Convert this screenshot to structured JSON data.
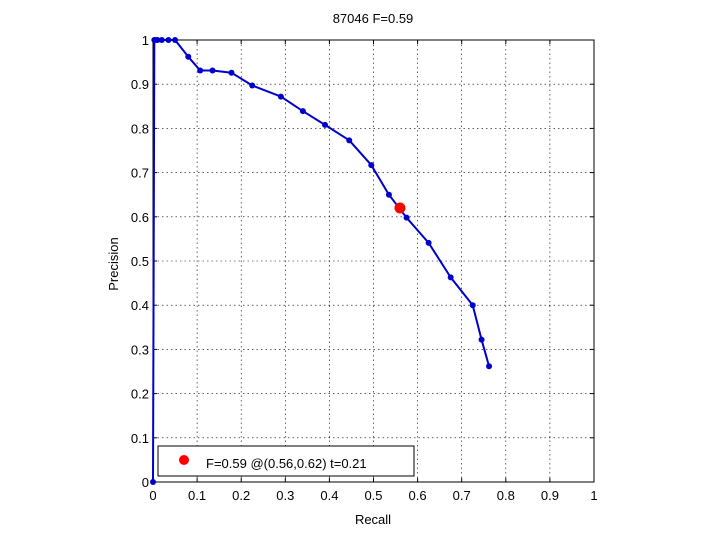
{
  "chart_data": {
    "type": "line",
    "title": "87046 F=0.59",
    "xlabel": "Recall",
    "ylabel": "Precision",
    "xlim": [
      0,
      1
    ],
    "ylim": [
      0,
      1
    ],
    "xticks": [
      "0",
      "0.1",
      "0.2",
      "0.3",
      "0.4",
      "0.5",
      "0.6",
      "0.7",
      "0.8",
      "0.9",
      "1"
    ],
    "yticks": [
      "0",
      "0.1",
      "0.2",
      "0.3",
      "0.4",
      "0.5",
      "0.6",
      "0.7",
      "0.8",
      "0.9",
      "1"
    ],
    "grid": true,
    "legend_position": "bottom-left",
    "series": [
      {
        "color": "#0000cc",
        "x": [
          0,
          0.003,
          0.005,
          0.01,
          0.02,
          0.035,
          0.05,
          0.08,
          0.107,
          0.135,
          0.178,
          0.225,
          0.29,
          0.34,
          0.39,
          0.445,
          0.495,
          0.535,
          0.575,
          0.625,
          0.675,
          0.725,
          0.745,
          0.762
        ],
        "y": [
          0,
          1.0,
          1.0,
          1.0,
          1.0,
          1.0,
          1.0,
          0.962,
          0.931,
          0.931,
          0.926,
          0.897,
          0.872,
          0.839,
          0.808,
          0.773,
          0.717,
          0.65,
          0.598,
          0.541,
          0.463,
          0.4,
          0.322,
          0.262
        ]
      }
    ],
    "best_point": {
      "x": 0.56,
      "y": 0.62,
      "color": "#ff0000"
    },
    "legend_label": "F=0.59 @(0.56,0.62) t=0.21"
  }
}
